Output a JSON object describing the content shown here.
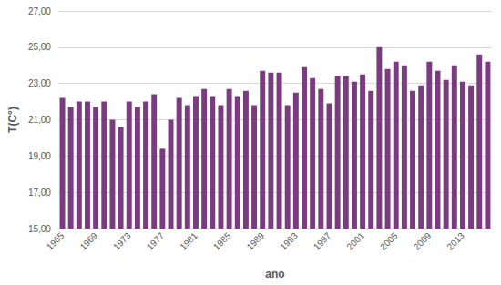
{
  "chart_data": {
    "type": "bar",
    "x_label": "año",
    "y_label": "T(C°)",
    "categories": [
      "1965",
      null,
      null,
      null,
      "1969",
      null,
      null,
      null,
      "1973",
      null,
      null,
      null,
      "1977",
      null,
      null,
      null,
      "1981",
      null,
      null,
      null,
      "1985",
      null,
      null,
      null,
      "1989",
      null,
      null,
      null,
      "1993",
      null,
      null,
      null,
      "1997",
      null,
      null,
      null,
      "2001",
      null,
      null,
      null,
      "2005",
      null,
      null,
      null,
      "2009",
      null,
      null,
      null,
      "2013",
      null,
      null,
      null
    ],
    "values": [
      22.2,
      21.7,
      22.0,
      22.0,
      21.7,
      22.0,
      21.0,
      20.6,
      22.0,
      21.7,
      22.0,
      22.4,
      19.4,
      21.0,
      22.2,
      21.8,
      22.3,
      22.7,
      22.3,
      21.8,
      22.7,
      22.3,
      22.6,
      21.8,
      23.7,
      23.6,
      23.6,
      21.8,
      22.5,
      23.9,
      23.3,
      22.7,
      21.9,
      23.4,
      23.4,
      23.1,
      23.5,
      22.6,
      25.0,
      23.8,
      24.2,
      24.0,
      22.6,
      22.9,
      24.2,
      23.7,
      23.2,
      24.0,
      23.1,
      22.9,
      24.6,
      24.2
    ],
    "color": "#7b3b80",
    "ylim": [
      15,
      27
    ],
    "yticks": [
      {
        "value": 15,
        "label": "15,00"
      },
      {
        "value": 17,
        "label": "17,00"
      },
      {
        "value": 19,
        "label": "19,00"
      },
      {
        "value": 21,
        "label": "21,00"
      },
      {
        "value": 23,
        "label": "23,00"
      },
      {
        "value": 25,
        "label": "25,00"
      },
      {
        "value": 27,
        "label": "27,00"
      }
    ],
    "grid": true
  }
}
